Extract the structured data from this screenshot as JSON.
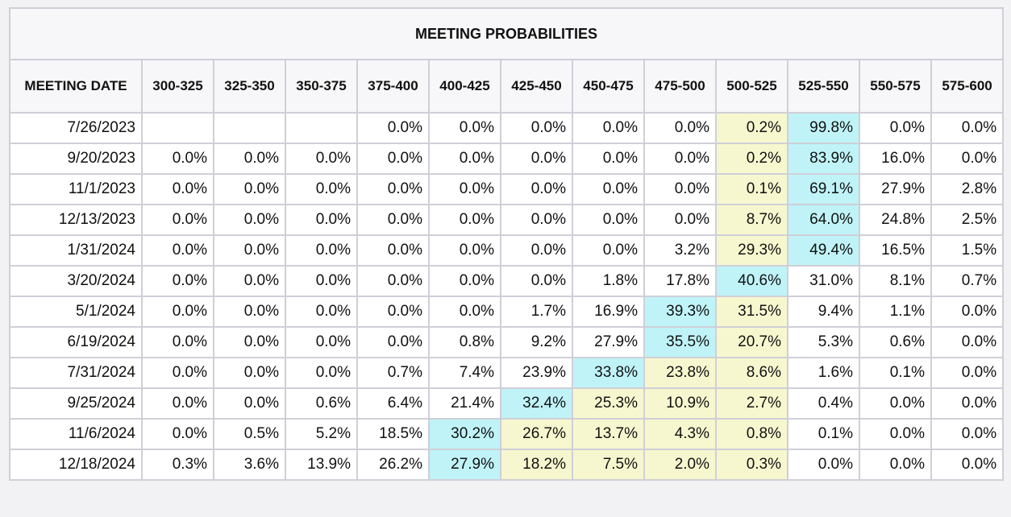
{
  "table": {
    "title": "MEETING PROBABILITIES",
    "columns": [
      "MEETING DATE",
      "300-325",
      "325-350",
      "350-375",
      "375-400",
      "400-425",
      "425-450",
      "450-475",
      "475-500",
      "500-525",
      "525-550",
      "550-575",
      "575-600"
    ],
    "rows": [
      [
        "7/26/2023",
        null,
        null,
        null,
        "0.0%",
        "0.0%",
        "0.0%",
        "0.0%",
        "0.0%",
        "0.2%",
        "99.8%",
        "0.0%",
        "0.0%"
      ],
      [
        "9/20/2023",
        "0.0%",
        "0.0%",
        "0.0%",
        "0.0%",
        "0.0%",
        "0.0%",
        "0.0%",
        "0.0%",
        "0.2%",
        "83.9%",
        "16.0%",
        "0.0%"
      ],
      [
        "11/1/2023",
        "0.0%",
        "0.0%",
        "0.0%",
        "0.0%",
        "0.0%",
        "0.0%",
        "0.0%",
        "0.0%",
        "0.1%",
        "69.1%",
        "27.9%",
        "2.8%"
      ],
      [
        "12/13/2023",
        "0.0%",
        "0.0%",
        "0.0%",
        "0.0%",
        "0.0%",
        "0.0%",
        "0.0%",
        "0.0%",
        "8.7%",
        "64.0%",
        "24.8%",
        "2.5%"
      ],
      [
        "1/31/2024",
        "0.0%",
        "0.0%",
        "0.0%",
        "0.0%",
        "0.0%",
        "0.0%",
        "0.0%",
        "3.2%",
        "29.3%",
        "49.4%",
        "16.5%",
        "1.5%"
      ],
      [
        "3/20/2024",
        "0.0%",
        "0.0%",
        "0.0%",
        "0.0%",
        "0.0%",
        "0.0%",
        "1.8%",
        "17.8%",
        "40.6%",
        "31.0%",
        "8.1%",
        "0.7%"
      ],
      [
        "5/1/2024",
        "0.0%",
        "0.0%",
        "0.0%",
        "0.0%",
        "0.0%",
        "1.7%",
        "16.9%",
        "39.3%",
        "31.5%",
        "9.4%",
        "1.1%",
        "0.0%"
      ],
      [
        "6/19/2024",
        "0.0%",
        "0.0%",
        "0.0%",
        "0.0%",
        "0.8%",
        "9.2%",
        "27.9%",
        "35.5%",
        "20.7%",
        "5.3%",
        "0.6%",
        "0.0%"
      ],
      [
        "7/31/2024",
        "0.0%",
        "0.0%",
        "0.0%",
        "0.7%",
        "7.4%",
        "23.9%",
        "33.8%",
        "23.8%",
        "8.6%",
        "1.6%",
        "0.1%",
        "0.0%"
      ],
      [
        "9/25/2024",
        "0.0%",
        "0.0%",
        "0.6%",
        "6.4%",
        "21.4%",
        "32.4%",
        "25.3%",
        "10.9%",
        "2.7%",
        "0.4%",
        "0.0%",
        "0.0%"
      ],
      [
        "11/6/2024",
        "0.0%",
        "0.5%",
        "5.2%",
        "18.5%",
        "30.2%",
        "26.7%",
        "13.7%",
        "4.3%",
        "0.8%",
        "0.1%",
        "0.0%",
        "0.0%"
      ],
      [
        "12/18/2024",
        "0.3%",
        "3.6%",
        "13.9%",
        "26.2%",
        "27.9%",
        "18.2%",
        "7.5%",
        "2.0%",
        "0.3%",
        "0.0%",
        "0.0%",
        "0.0%"
      ]
    ],
    "max_color": "#bff3f7",
    "between_color": "#f7f7cf"
  }
}
